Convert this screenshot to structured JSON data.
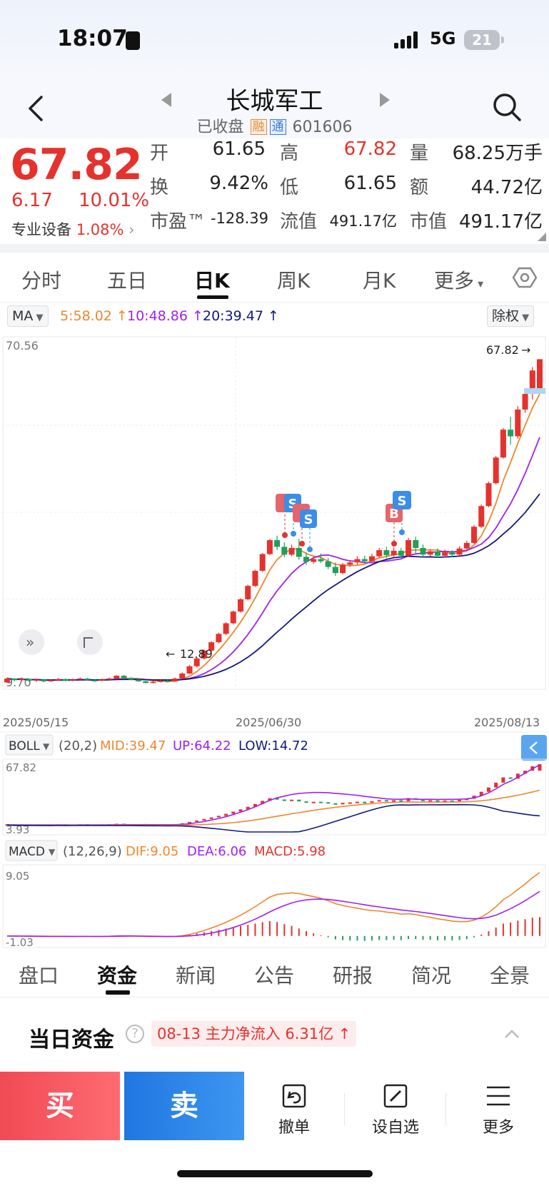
{
  "status_bar": {
    "time": "18:07",
    "network": "5G",
    "battery": "21"
  },
  "header": {
    "title": "长城军工",
    "status": "已收盘",
    "tag_rong": "融",
    "tag_tong": "通",
    "code": "601606"
  },
  "quote": {
    "price": "67.82",
    "change": "6.17",
    "change_pct": "10.01%",
    "sector": "专业设备",
    "sector_pct": "1.08%",
    "fields": [
      {
        "label": "开",
        "value": "61.65",
        "color": "normal"
      },
      {
        "label": "高",
        "value": "67.82",
        "color": "red"
      },
      {
        "label": "量",
        "value": "68.25万手",
        "color": "normal"
      },
      {
        "label": "换",
        "value": "9.42%",
        "color": "normal"
      },
      {
        "label": "低",
        "value": "61.65",
        "color": "normal"
      },
      {
        "label": "额",
        "value": "44.72亿",
        "color": "normal"
      },
      {
        "label": "市盈™",
        "value": "-128.39",
        "color": "normal"
      },
      {
        "label": "流值",
        "value": "491.17亿",
        "color": "normal"
      },
      {
        "label": "市值",
        "value": "491.17亿",
        "color": "normal"
      }
    ]
  },
  "period_tabs": [
    "分时",
    "五日",
    "日K",
    "周K",
    "月K",
    "更多"
  ],
  "active_period": "日K",
  "ma": {
    "selector": "MA",
    "ma5": "5:58.02",
    "ma10": "10:48.86",
    "ma20": "20:39.47",
    "adjust": "除权"
  },
  "chart_labels": {
    "price_max": "70.56",
    "price_min": "9.70",
    "last_price": "67.82",
    "low_marker": "12.89",
    "date_start": "2025/05/15",
    "date_mid": "2025/06/30",
    "date_end": "2025/08/13",
    "marker_s": "S",
    "marker_b": "B",
    "expand_icon_text": "»",
    "boll_selector": "BOLL",
    "boll_params": "(20,2)",
    "boll_mid": "MID:39.47",
    "boll_up": "UP:64.22",
    "boll_low": "LOW:14.72",
    "boll_max": "67.82",
    "boll_min": "3.93",
    "macd_selector": "MACD",
    "macd_params": "(12,26,9)",
    "macd_dif": "DIF:9.05",
    "macd_dea": "DEA:6.06",
    "macd_val": "MACD:5.98",
    "macd_max": "9.05",
    "macd_min": "-1.03"
  },
  "colors": {
    "up": "#e5322d",
    "down": "#1fa05a",
    "ma5": "#f0862b",
    "ma10": "#a020f0",
    "ma20": "#101880",
    "accent_blue": "#3b8de8"
  },
  "chart_data": {
    "type": "candlestick",
    "candles": [
      [
        9.9,
        10.6,
        10.8,
        9.8
      ],
      [
        10.6,
        10.3,
        10.7,
        10.1
      ],
      [
        10.3,
        10.5,
        10.8,
        10.1
      ],
      [
        10.5,
        10.2,
        10.6,
        10.0
      ],
      [
        10.2,
        10.4,
        10.6,
        10.0
      ],
      [
        10.4,
        10.1,
        10.5,
        9.9
      ],
      [
        10.1,
        10.3,
        10.5,
        10.0
      ],
      [
        10.3,
        10.5,
        10.7,
        10.2
      ],
      [
        10.5,
        10.2,
        10.6,
        10.1
      ],
      [
        10.2,
        10.4,
        10.6,
        10.1
      ],
      [
        10.4,
        10.6,
        10.8,
        10.3
      ],
      [
        10.6,
        10.3,
        10.7,
        10.2
      ],
      [
        10.3,
        10.2,
        10.5,
        10.0
      ],
      [
        10.2,
        10.4,
        10.6,
        10.1
      ],
      [
        10.4,
        10.6,
        10.8,
        10.3
      ],
      [
        10.6,
        11.1,
        11.2,
        10.5
      ],
      [
        11.1,
        10.7,
        11.2,
        10.5
      ],
      [
        10.7,
        10.4,
        10.8,
        10.3
      ],
      [
        10.4,
        10.1,
        10.5,
        10.0
      ],
      [
        10.1,
        9.8,
        10.2,
        9.7
      ],
      [
        9.8,
        10.0,
        10.2,
        9.7
      ],
      [
        10.0,
        10.2,
        10.4,
        9.9
      ],
      [
        10.2,
        10.1,
        10.4,
        9.9
      ],
      [
        10.1,
        10.6,
        10.8,
        10.0
      ],
      [
        10.6,
        11.5,
        11.7,
        10.5
      ],
      [
        11.5,
        12.8,
        13.0,
        11.4
      ],
      [
        12.8,
        14.2,
        14.4,
        12.6
      ],
      [
        14.2,
        15.6,
        15.8,
        14.0
      ],
      [
        15.6,
        17.1,
        17.3,
        15.4
      ],
      [
        17.1,
        18.6,
        18.8,
        16.9
      ],
      [
        18.6,
        20.5,
        20.7,
        18.4
      ],
      [
        20.5,
        22.6,
        22.8,
        20.3
      ],
      [
        22.6,
        24.8,
        25.0,
        22.4
      ],
      [
        24.8,
        27.2,
        27.4,
        24.6
      ],
      [
        27.2,
        29.9,
        30.1,
        27.0
      ],
      [
        29.9,
        32.9,
        33.1,
        29.7
      ],
      [
        32.9,
        35.4,
        35.6,
        32.7
      ],
      [
        35.4,
        34.2,
        36.2,
        33.6
      ],
      [
        34.2,
        32.8,
        35.0,
        32.3
      ],
      [
        32.8,
        34.0,
        34.6,
        32.5
      ],
      [
        34.0,
        32.4,
        35.6,
        31.9
      ],
      [
        32.4,
        31.5,
        33.2,
        31.0
      ],
      [
        31.5,
        32.0,
        32.5,
        31.2
      ],
      [
        32.0,
        31.6,
        33.0,
        31.3
      ],
      [
        31.6,
        30.6,
        32.2,
        30.2
      ],
      [
        30.6,
        29.5,
        31.4,
        29.0
      ],
      [
        29.5,
        31.0,
        31.3,
        29.3
      ],
      [
        31.0,
        31.4,
        31.8,
        30.6
      ],
      [
        31.4,
        32.0,
        32.5,
        31.0
      ],
      [
        32.0,
        31.6,
        32.6,
        31.2
      ],
      [
        31.6,
        32.5,
        33.0,
        31.4
      ],
      [
        32.5,
        33.6,
        34.0,
        32.2
      ],
      [
        33.6,
        32.7,
        34.2,
        32.2
      ],
      [
        32.7,
        33.5,
        34.1,
        32.4
      ],
      [
        33.5,
        32.6,
        34.0,
        32.2
      ],
      [
        32.6,
        35.4,
        35.8,
        32.4
      ],
      [
        35.4,
        34.0,
        36.0,
        33.0
      ],
      [
        34.0,
        32.8,
        34.6,
        32.4
      ],
      [
        32.8,
        33.4,
        33.8,
        32.5
      ],
      [
        33.4,
        32.6,
        33.9,
        32.2
      ],
      [
        32.6,
        33.2,
        33.7,
        32.3
      ],
      [
        33.2,
        32.8,
        33.6,
        32.4
      ],
      [
        32.8,
        33.9,
        34.3,
        32.6
      ],
      [
        33.9,
        34.9,
        35.3,
        33.6
      ],
      [
        34.9,
        37.8,
        38.1,
        34.7
      ],
      [
        37.8,
        41.5,
        41.8,
        37.6
      ],
      [
        41.5,
        45.6,
        45.9,
        41.3
      ],
      [
        45.6,
        50.2,
        50.5,
        45.4
      ],
      [
        50.2,
        55.2,
        55.5,
        50.0
      ],
      [
        55.2,
        54.0,
        57.5,
        52.5
      ],
      [
        54.0,
        58.8,
        59.4,
        53.6
      ],
      [
        58.8,
        61.6,
        62.4,
        58.2
      ],
      [
        61.6,
        65.8,
        66.4,
        60.6
      ],
      [
        61.65,
        67.82,
        67.82,
        61.65
      ]
    ],
    "price_range": [
      9.7,
      70.56
    ],
    "ma_latest": {
      "ma5": 58.02,
      "ma10": 48.86,
      "ma20": 39.47
    },
    "x_ticks": [
      "2025/05/15",
      "2025/06/30",
      "2025/08/13"
    ]
  }
}
